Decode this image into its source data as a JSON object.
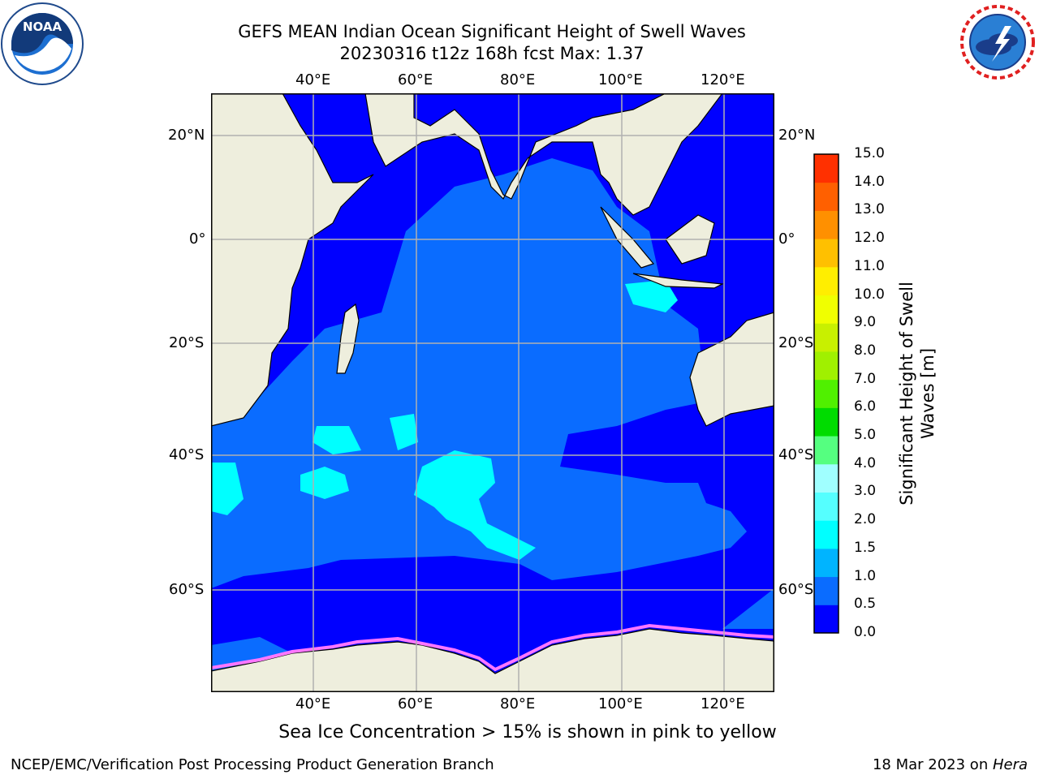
{
  "title_line1": "GEFS MEAN Indian Ocean Significant Height of Swell Waves",
  "title_line2": "20230316 t12z 168h fcst   Max: 1.37",
  "note": "Sea Ice Concentration > 15% is shown in pink to yellow",
  "footer_left": "NCEP/EMC/Verification Post Processing Product Generation Branch",
  "footer_right_prefix": "18 Mar 2023 on ",
  "footer_right_host": "Hera",
  "lon_labels": [
    "40°E",
    "60°E",
    "80°E",
    "100°E",
    "120°E"
  ],
  "lat_labels": [
    "20°N",
    "0°",
    "20°S",
    "40°S",
    "60°S"
  ],
  "colorbar": {
    "label_line1": "Significant Height of Swell",
    "label_line2": "Waves [m]",
    "ticks": [
      "0.0",
      "0.5",
      "1.0",
      "1.5",
      "2.0",
      "3.0",
      "4.0",
      "5.0",
      "6.0",
      "7.0",
      "8.0",
      "9.0",
      "10.0",
      "11.0",
      "12.0",
      "13.0",
      "14.0",
      "15.0"
    ],
    "colors": [
      "#0000ff",
      "#0a6cff",
      "#00b4ff",
      "#00ffff",
      "#55ffff",
      "#a0ffff",
      "#55ff80",
      "#00dc00",
      "#50f000",
      "#a0f000",
      "#c8f000",
      "#f0ff00",
      "#ffee00",
      "#ffc000",
      "#ff9000",
      "#ff6000",
      "#ff3000",
      "#ff0000"
    ]
  },
  "logos": {
    "left_text": "NOAA",
    "right_text": "NATIONAL WEATHER SERVICE"
  },
  "map_colors": {
    "land": "#eeeedd",
    "deep": "#0000ff",
    "mid": "#0a6cff",
    "cyan": "#00ffff",
    "ice_pink": "#ff77ff"
  }
}
